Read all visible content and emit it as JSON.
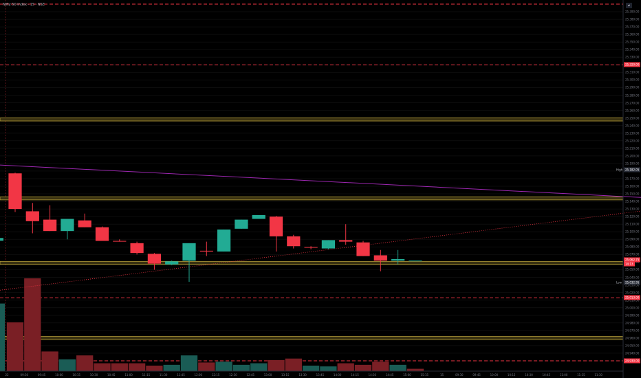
{
  "header": {
    "title": "Nifty 50 Index · 15 · NSE",
    "toggle_label": "⇄"
  },
  "price_axis": {
    "ticks": [
      "25,390.00",
      "25,380.00",
      "25,370.00",
      "25,360.00",
      "25,350.00",
      "25,340.00",
      "25,330.00",
      "25,320.00",
      "25,310.00",
      "25,300.00",
      "25,290.00",
      "25,280.00",
      "25,270.00",
      "25,260.00",
      "25,250.00",
      "25,240.00",
      "25,230.00",
      "25,220.00",
      "25,210.00",
      "25,200.00",
      "25,190.00",
      "25,180.00",
      "25,170.00",
      "25,160.00",
      "25,150.00",
      "25,140.00",
      "25,130.00",
      "25,120.00",
      "25,110.00",
      "25,100.00",
      "25,090.00",
      "25,080.00",
      "25,070.00",
      "25,060.00",
      "25,050.00",
      "25,040.00",
      "25,030.00",
      "25,020.00",
      "25,010.00",
      "25,000.00",
      "24,990.00",
      "24,980.00",
      "24,970.00",
      "24,960.00",
      "24,950.00",
      "24,940.00",
      "24,930.00"
    ],
    "tags": [
      {
        "text": "25,320.00",
        "price": 25320,
        "color": "#f23645"
      },
      {
        "text": "25,182.05",
        "price": 25182.05,
        "color": "#2a2e39",
        "side_label": "High"
      },
      {
        "text": "25,062.75",
        "price": 25062.75,
        "color": "#f23645"
      },
      {
        "text": "25,032.95",
        "price": 25032.95,
        "color": "#2a2e39",
        "side_label": "Low"
      },
      {
        "text": "25,013.00",
        "price": 25013,
        "color": "#f23645"
      },
      {
        "text": "24,930.00",
        "price": 24930,
        "color": "#f23645"
      }
    ],
    "small_tags": [
      "14:13"
    ]
  },
  "time_axis": {
    "labels": [
      "22",
      "09:30",
      "09:45",
      "10:00",
      "10:15",
      "10:30",
      "10:45",
      "11:00",
      "11:15",
      "11:30",
      "11:45",
      "12:00",
      "12:15",
      "12:30",
      "12:45",
      "13:00",
      "13:15",
      "13:30",
      "13:45",
      "14:00",
      "14:15",
      "14:30",
      "14:45",
      "15:00",
      "15:15",
      "15",
      "09:30",
      "09:45",
      "10:00",
      "10:15",
      "10:30",
      "10:45",
      "11:00",
      "11:15",
      "11:30"
    ]
  },
  "colors": {
    "up": "#22ab94",
    "down": "#f23645",
    "vol_up": "#1a5c55",
    "vol_down": "#7a1f25",
    "trendline": "#9c27b0",
    "zone": "#b8a13a",
    "dashed": "#f23645"
  },
  "chart_data": {
    "type": "candlestick",
    "interval": "15m",
    "ylim": [
      24920,
      25400
    ],
    "candles": [
      {
        "o": 25177,
        "h": 25178,
        "c": 25130,
        "l": 25126
      },
      {
        "o": 25127,
        "h": 25138,
        "c": 25114,
        "l": 25098
      },
      {
        "o": 25116,
        "h": 25135,
        "c": 25101,
        "l": 25101
      },
      {
        "o": 25101,
        "h": 25117,
        "c": 25117,
        "l": 25090
      },
      {
        "o": 25115,
        "h": 25124,
        "c": 25106,
        "l": 25106
      },
      {
        "o": 25106,
        "h": 25107,
        "c": 25088,
        "l": 25088
      },
      {
        "o": 25088,
        "h": 25090,
        "c": 25087,
        "l": 25087
      },
      {
        "o": 25085,
        "h": 25087,
        "c": 25072,
        "l": 25070
      },
      {
        "o": 25071,
        "h": 25072,
        "c": 25058,
        "l": 25050
      },
      {
        "o": 25057,
        "h": 25062,
        "c": 25061,
        "l": 25056
      },
      {
        "o": 25062,
        "h": 25085,
        "c": 25085,
        "l": 25034
      },
      {
        "o": 25075,
        "h": 25087,
        "c": 25074,
        "l": 25068
      },
      {
        "o": 25074,
        "h": 25103,
        "c": 25103,
        "l": 25074
      },
      {
        "o": 25104,
        "h": 25116,
        "c": 25116,
        "l": 25104
      },
      {
        "o": 25117,
        "h": 25122,
        "c": 25122,
        "l": 25117
      },
      {
        "o": 25120,
        "h": 25121,
        "c": 25094,
        "l": 25074
      },
      {
        "o": 25094,
        "h": 25096,
        "c": 25081,
        "l": 25078
      },
      {
        "o": 25080,
        "h": 25081,
        "c": 25079,
        "l": 25077
      },
      {
        "o": 25078,
        "h": 25089,
        "c": 25089,
        "l": 25077
      },
      {
        "o": 25089,
        "h": 25110,
        "c": 25087,
        "l": 25083
      },
      {
        "o": 25086,
        "h": 25088,
        "c": 25068,
        "l": 25068
      },
      {
        "o": 25069,
        "h": 25076,
        "c": 25062,
        "l": 25048
      },
      {
        "o": 25062,
        "h": 25076,
        "c": 25064,
        "l": 25057
      },
      {
        "o": 25062,
        "h": 25062,
        "c": 25062,
        "l": 25062
      }
    ],
    "volume": [
      {
        "v": 62,
        "up": false
      },
      {
        "v": 118,
        "up": false
      },
      {
        "v": 25,
        "up": false
      },
      {
        "v": 15,
        "up": true
      },
      {
        "v": 20,
        "up": false
      },
      {
        "v": 10,
        "up": false
      },
      {
        "v": 10,
        "up": false
      },
      {
        "v": 10,
        "up": false
      },
      {
        "v": 7,
        "up": false
      },
      {
        "v": 8,
        "up": true
      },
      {
        "v": 20,
        "up": true
      },
      {
        "v": 11,
        "up": false
      },
      {
        "v": 12,
        "up": true
      },
      {
        "v": 8,
        "up": true
      },
      {
        "v": 10,
        "up": true
      },
      {
        "v": 14,
        "up": false
      },
      {
        "v": 16,
        "up": false
      },
      {
        "v": 7,
        "up": true
      },
      {
        "v": 6,
        "up": true
      },
      {
        "v": 10,
        "up": false
      },
      {
        "v": 8,
        "up": false
      },
      {
        "v": 12,
        "up": false
      },
      {
        "v": 8,
        "up": true
      },
      {
        "v": 3,
        "up": false
      }
    ],
    "zones": [
      {
        "from": 25246,
        "to": 25250
      },
      {
        "from": 25142,
        "to": 25146
      },
      {
        "from": 25057,
        "to": 25061
      },
      {
        "from": 24958,
        "to": 24962
      }
    ],
    "dashed_levels": [
      25400,
      25320,
      25013,
      24930
    ],
    "trendlines": [
      {
        "from": [
          0,
          25188
        ],
        "to": [
          35,
          25145
        ],
        "style": "solid"
      },
      {
        "from": [
          0,
          25023
        ],
        "to": [
          35,
          25128
        ],
        "style": "dotted"
      }
    ]
  }
}
